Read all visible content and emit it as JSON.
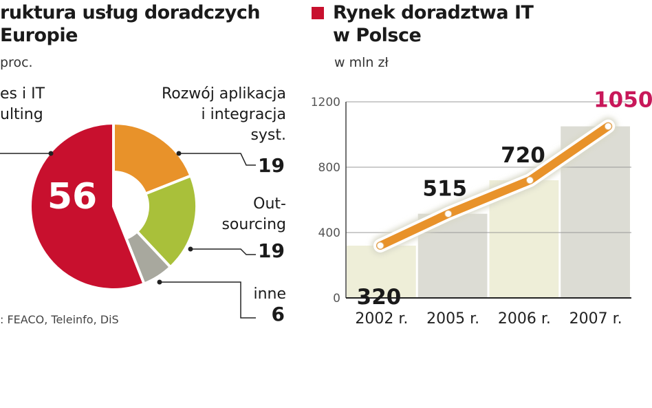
{
  "chart_data": [
    {
      "type": "pie",
      "title": "ruktura usług doradczych Europie",
      "title_lines": [
        "ruktura usług doradczych",
        " Europie"
      ],
      "subtitle": "proc.",
      "slices": [
        {
          "label_lines": [
            "es i IT",
            "ulting"
          ],
          "value": 56,
          "color": "#c8102e"
        },
        {
          "label_lines": [
            "Rozwój aplikacja",
            "i integracja",
            "syst."
          ],
          "value": 19,
          "color": "#e8922a"
        },
        {
          "label_lines": [
            "Out-",
            "sourcing"
          ],
          "value": 19,
          "color": "#a9c03a"
        },
        {
          "label_lines": [
            "inne"
          ],
          "value": 6,
          "color": "#a8a89e"
        }
      ],
      "source": ": FEACO, Teleinfo, DiS"
    },
    {
      "type": "line",
      "title_lines": [
        "Rynek doradztwa IT",
        "w Polsce"
      ],
      "title_marker_color": "#c8102e",
      "subtitle": "w mln zł",
      "categories": [
        "2002 r.",
        "2005 r.",
        "2006 r.",
        "2007 r."
      ],
      "values": [
        320,
        515,
        720,
        1050
      ],
      "value_labels": [
        "320",
        "515",
        "720",
        "1050"
      ],
      "ylim": [
        0,
        1200
      ],
      "yticks": [
        "0",
        "400",
        "800",
        "1200"
      ],
      "grid": true,
      "line_color": "#e8922a",
      "highlight_color": "#c8185a"
    }
  ]
}
